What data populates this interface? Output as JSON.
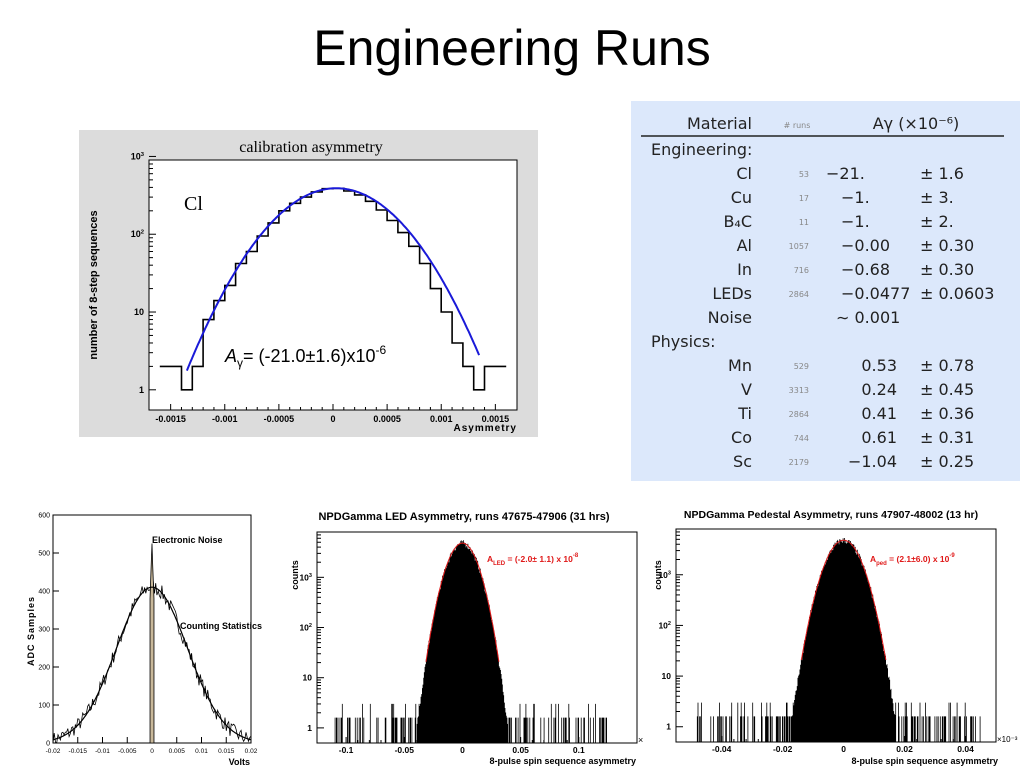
{
  "slide": {
    "title": "Engineering Runs"
  },
  "colors": {
    "fit_blue": "#1a1ad8",
    "fit_red": "#e01818",
    "table_bg": "#dce8fb",
    "panel_gray": "#dcdcdc",
    "fill_tan": "#c8b89a"
  },
  "table": {
    "headers": {
      "material": "Material",
      "runs": "# runs",
      "asym": "Aγ (×10⁻⁶)"
    },
    "sections": [
      {
        "name": "Engineering:",
        "rows": [
          {
            "material": "Cl",
            "runs": "53",
            "value": "−21.",
            "error": "± 1.6"
          },
          {
            "material": "Cu",
            "runs": "17",
            "value": "−1.",
            "error": "± 3."
          },
          {
            "material": "B₄C",
            "runs": "11",
            "value": "−1.",
            "error": "± 2."
          },
          {
            "material": "Al",
            "runs": "1057",
            "value": "−0.00",
            "error": "± 0.30"
          },
          {
            "material": "In",
            "runs": "716",
            "value": "−0.68",
            "error": "± 0.30"
          },
          {
            "material": "LEDs",
            "runs": "2864",
            "value": "−0.0477",
            "error": "± 0.0603"
          },
          {
            "material": "Noise",
            "runs": "",
            "value": "∼ 0.001",
            "error": ""
          }
        ]
      },
      {
        "name": "Physics:",
        "rows": [
          {
            "material": "Mn",
            "runs": "529",
            "value": "0.53",
            "error": "± 0.78"
          },
          {
            "material": "V",
            "runs": "3313",
            "value": "0.24",
            "error": "± 0.45"
          },
          {
            "material": "Ti",
            "runs": "2864",
            "value": "0.41",
            "error": "± 0.36"
          },
          {
            "material": "Co",
            "runs": "744",
            "value": "0.61",
            "error": "± 0.31"
          },
          {
            "material": "Sc",
            "runs": "2179",
            "value": "−1.04",
            "error": "± 0.25"
          }
        ]
      }
    ]
  },
  "chart_data": [
    {
      "id": "calibration",
      "type": "line",
      "title": "calibration asymmetry",
      "xlabel": "Asymmetry",
      "ylabel": "number of 8-step sequences",
      "annotation": "Cl",
      "formula": {
        "base": "A",
        "sub": "γ",
        "body": "= (-21.0±1.6)x10",
        "sup": "-6"
      },
      "log_y": true,
      "xlim": [
        -0.0017,
        0.0017
      ],
      "ylim": [
        0.55,
        900
      ],
      "x_ticks": [
        "-0.0015",
        "-0.001",
        "-0.0005",
        "0",
        "0.0005",
        "0.001",
        "0.0015"
      ],
      "x_tick_values": [
        -0.0015,
        -0.001,
        -0.0005,
        0,
        0.0005,
        0.001,
        0.0015
      ],
      "y_ticks": [
        "1",
        "10",
        "10²",
        "10³"
      ],
      "y_tick_values": [
        1,
        10,
        100,
        1000
      ],
      "fit": {
        "amplitude": 390,
        "mean": 3e-05,
        "sigma": 0.00042
      },
      "x": [
        -0.00155,
        -0.00145,
        -0.00135,
        -0.00125,
        -0.00115,
        -0.00105,
        -0.00095,
        -0.00085,
        -0.00075,
        -0.00065,
        -0.00055,
        -0.00045,
        -0.00035,
        -0.00025,
        -0.00015,
        -5e-05,
        5e-05,
        0.00015,
        0.00025,
        0.00035,
        0.00045,
        0.00055,
        0.00065,
        0.00075,
        0.00085,
        0.00095,
        0.00105,
        0.00115,
        0.00125,
        0.00135,
        0.00145,
        0.00155
      ],
      "values": [
        2,
        2,
        1,
        2,
        8,
        14,
        22,
        42,
        60,
        95,
        140,
        200,
        250,
        300,
        350,
        385,
        390,
        360,
        320,
        265,
        205,
        150,
        105,
        70,
        42,
        20,
        10,
        4,
        2,
        1,
        2,
        2
      ]
    },
    {
      "id": "noise",
      "type": "line",
      "xlabel": "Volts",
      "ylabel": "ADC Samples",
      "annotations": [
        "Electronic Noise",
        "Counting Statistics"
      ],
      "xlim": [
        -0.02,
        0.02
      ],
      "ylim": [
        0,
        600
      ],
      "x_ticks": [
        "-0.02",
        "-0.015",
        "-0.01",
        "-0.005",
        "0",
        "0.005",
        "0.01",
        "0.015",
        "0.02"
      ],
      "x_tick_values": [
        -0.02,
        -0.015,
        -0.01,
        -0.005,
        0,
        0.005,
        0.01,
        0.015,
        0.02
      ],
      "y_ticks": [
        "0",
        "100",
        "200",
        "300",
        "400",
        "500",
        "600"
      ],
      "y_tick_values": [
        0,
        100,
        200,
        300,
        400,
        500,
        600
      ],
      "counting_fit": {
        "amplitude": 410,
        "mean": 0,
        "sigma": 0.0072
      },
      "spike": {
        "center": 0,
        "width": 0.0008,
        "height": 525
      }
    },
    {
      "id": "led",
      "type": "line",
      "title": "NPDGamma LED Asymmetry, runs 47675-47906 (31 hrs)",
      "xlabel": "8-pulse spin sequence asymmetry",
      "ylabel": "counts",
      "formula": {
        "base": "A",
        "sub": "LED",
        "body": " = (-2.0± 1.1) x 10",
        "sup": "-8"
      },
      "log_y": true,
      "xlim": [
        -0.125,
        0.15
      ],
      "ylim": [
        0.5,
        8000
      ],
      "x_ticks": [
        "-0.1",
        "-0.05",
        "0",
        "0.05",
        "0.1"
      ],
      "x_tick_values": [
        -0.1,
        -0.05,
        0,
        0.05,
        0.1
      ],
      "y_ticks": [
        "1",
        "10",
        "10²",
        "10³"
      ],
      "y_tick_values": [
        1,
        10,
        100,
        1000
      ],
      "x_unit_label": "×",
      "fit": {
        "amplitude": 4800,
        "mean": 0,
        "sigma": 0.0095
      }
    },
    {
      "id": "pedestal",
      "type": "line",
      "title": "NPDGamma Pedestal Asymmetry, runs 47907-48002 (13 hr)",
      "xlabel": "8-pulse spin sequence asymmetry",
      "ylabel": "counts",
      "formula": {
        "base": "A",
        "sub": "ped",
        "body": " = (2.1±6.0) x 10",
        "sup": "-9"
      },
      "log_y": true,
      "xlim": [
        -0.055,
        0.05
      ],
      "ylim": [
        0.5,
        8000
      ],
      "x_ticks": [
        "-0.04",
        "-0.02",
        "0",
        "0.02",
        "0.04"
      ],
      "x_tick_values": [
        -0.04,
        -0.02,
        0,
        0.02,
        0.04
      ],
      "y_ticks": [
        "1",
        "10",
        "10²",
        "10³"
      ],
      "y_tick_values": [
        1,
        10,
        100,
        1000
      ],
      "x_unit_label": "×10⁻³",
      "fit": {
        "amplitude": 4800,
        "mean": 0,
        "sigma": 0.0042
      }
    }
  ]
}
